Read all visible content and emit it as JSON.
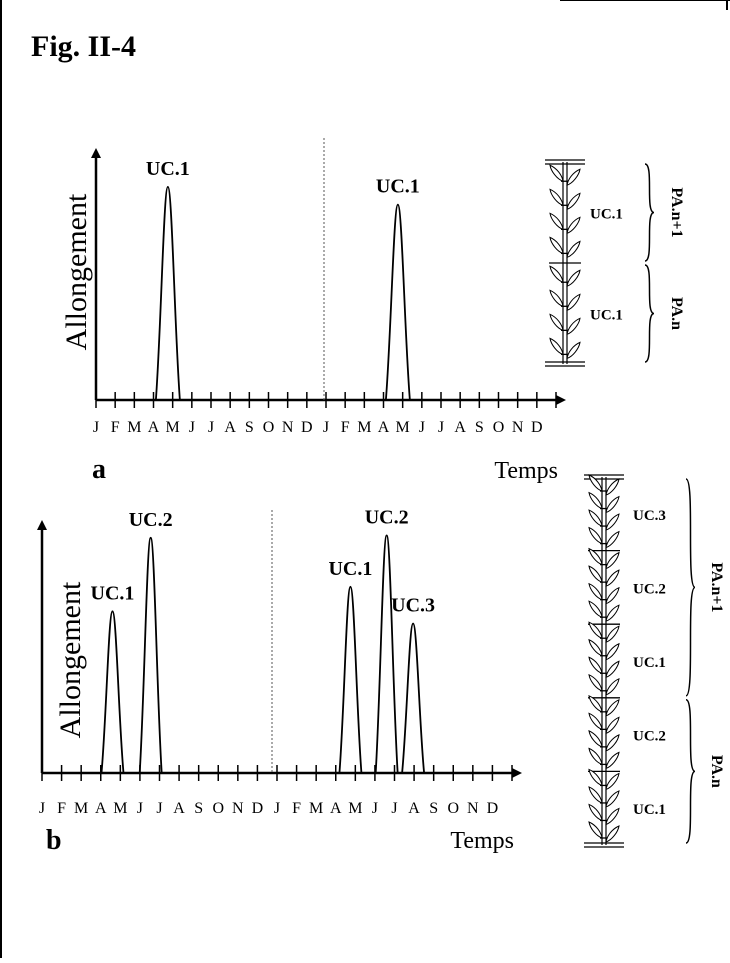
{
  "figure_label": "Fig. II-4",
  "panels": [
    {
      "id": "a",
      "letter": "a",
      "ylabel": "Allongement",
      "xlabel": "Temps",
      "months": [
        "J",
        "F",
        "M",
        "A",
        "M",
        "J",
        "J",
        "A",
        "S",
        "O",
        "N",
        "D",
        "J",
        "F",
        "M",
        "A",
        "M",
        "J",
        "J",
        "A",
        "S",
        "O",
        "N",
        "D"
      ],
      "peaks": [
        {
          "label": "UC.1",
          "position": 3.75,
          "height": 0.96
        },
        {
          "label": "UC.1",
          "position": 15.75,
          "height": 0.88
        }
      ],
      "plant": {
        "units": [
          {
            "label": "UC.1"
          },
          {
            "label": "UC.1"
          }
        ],
        "annual_groups": [
          {
            "label": "PA.n+1"
          },
          {
            "label": "PA.n"
          }
        ]
      }
    },
    {
      "id": "b",
      "letter": "b",
      "ylabel": "Allongement",
      "xlabel": "Temps",
      "months": [
        "J",
        "F",
        "M",
        "A",
        "M",
        "J",
        "J",
        "A",
        "S",
        "O",
        "N",
        "D",
        "J",
        "F",
        "M",
        "A",
        "M",
        "J",
        "J",
        "A",
        "S",
        "O",
        "N",
        "D"
      ],
      "peaks": [
        {
          "label": "UC.1",
          "position": 3.6,
          "height": 0.66
        },
        {
          "label": "UC.2",
          "position": 5.55,
          "height": 0.96
        },
        {
          "label": "UC.1",
          "position": 15.75,
          "height": 0.76
        },
        {
          "label": "UC.2",
          "position": 17.6,
          "height": 0.97
        },
        {
          "label": "UC.3",
          "position": 18.95,
          "height": 0.61
        }
      ],
      "plant": {
        "units": [
          {
            "label": "UC.3"
          },
          {
            "label": "UC.2"
          },
          {
            "label": "UC.1"
          },
          {
            "label": "UC.2"
          },
          {
            "label": "UC.1"
          }
        ],
        "annual_groups": [
          {
            "label": "PA.n+1"
          },
          {
            "label": "PA.n"
          }
        ]
      }
    }
  ]
}
